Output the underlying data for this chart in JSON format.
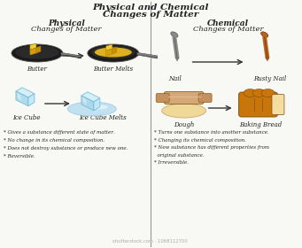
{
  "title_line1": "Physical and Chemical",
  "title_line2": "Changes of Matter",
  "left_header1": "Physical",
  "left_header2": "Changes of Matter",
  "right_header1": "Chemical",
  "right_header2": "Changes of Matter",
  "left_label1a": "Butter",
  "left_label1b": "Butter Melts",
  "left_label2a": "Ice Cube",
  "left_label2b": "Ice Cube Melts",
  "right_label1a": "Nail",
  "right_label1b": "Rusty Nail",
  "right_label2a": "Dough",
  "right_label2b": "Baking Bread",
  "left_bullets": [
    "* Gives a substance different state of matter.",
    "* No change in its chemical composition.",
    "* Does not destroy substance or produce new one.",
    "* Reversible."
  ],
  "right_bullets": [
    "* Turns one substance into another substance.",
    "* Changing its chemical composition.",
    "* New substance has different properties from",
    "  original substance.",
    "* Irreversible."
  ],
  "bg_color": "#f8f8f5",
  "divider_color": "#999999",
  "text_color": "#222222",
  "arrow_color": "#333333",
  "pan_dark": "#1a1a1a",
  "butter_yellow": "#d4a017",
  "butter_light": "#e8c840",
  "melt_yellow": "#e8b820",
  "ice_blue": "#a8d8ea",
  "ice_light": "#d0eef8",
  "nail_gray": "#8a8a8a",
  "rust_color": "#b5651b",
  "dough_color": "#f0d898",
  "bread_color": "#c8760a",
  "bread_inner": "#f5dea0",
  "bread_dark": "#7a4a1a"
}
